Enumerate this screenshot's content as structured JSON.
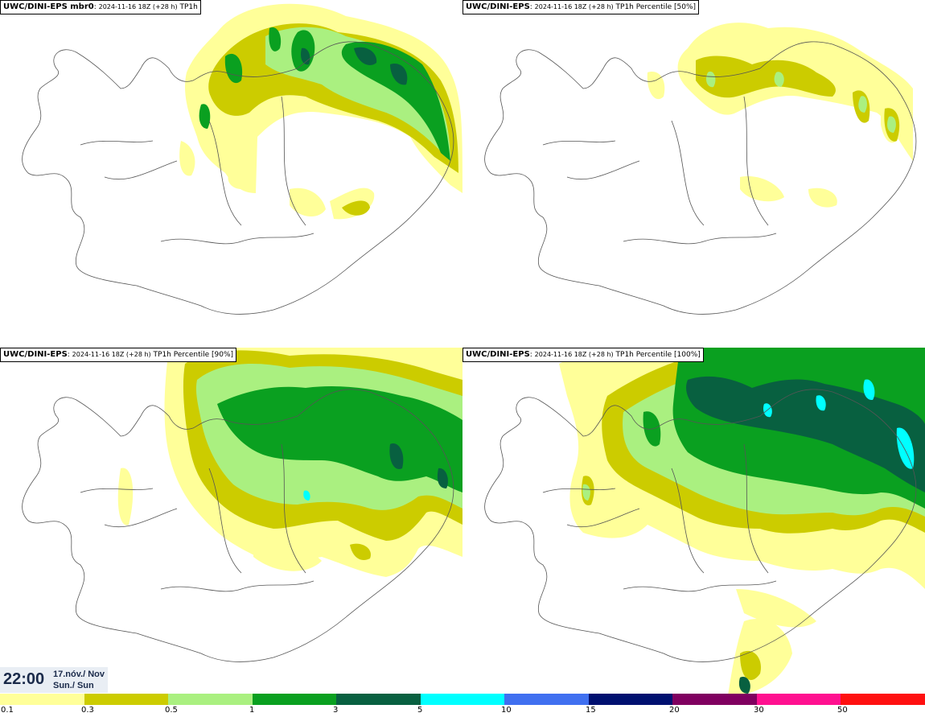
{
  "panels": [
    {
      "model": "UWC/DINI-EPS mbr0",
      "run": "2024-11-16 18Z (+28 h)",
      "field": "TP1h"
    },
    {
      "model": "UWC/DINI-EPS",
      "run": "2024-11-16 18Z (+28 h)",
      "field": "TP1h Percentile [50%]"
    },
    {
      "model": "UWC/DINI-EPS",
      "run": "2024-11-16 18Z (+28 h)",
      "field": "TP1h Percentile [90%]"
    },
    {
      "model": "UWC/DINI-EPS",
      "run": "2024-11-16 18Z (+28 h)",
      "field": "TP1h Percentile [100%]"
    }
  ],
  "valid_time": {
    "time": "22:00",
    "date": "17.nóv./ Nov",
    "day": "Sun./ Sun"
  },
  "legend": {
    "labels": [
      "0.1",
      "0.3",
      "0.5",
      "1",
      "3",
      "5",
      "10",
      "15",
      "20",
      "30",
      "50"
    ],
    "colors": [
      "#ffff99",
      "#cccc00",
      "#aaf080",
      "#0aa020",
      "#086040",
      "#00ffff",
      "#4070f0",
      "#001070",
      "#800060",
      "#ff1090",
      "#ff1010"
    ]
  },
  "colors": {
    "light_yellow": "#ffff99",
    "olive": "#cccc00",
    "light_green": "#aaf080",
    "green": "#0aa020",
    "dark_green": "#086040",
    "cyan": "#00ffff"
  }
}
